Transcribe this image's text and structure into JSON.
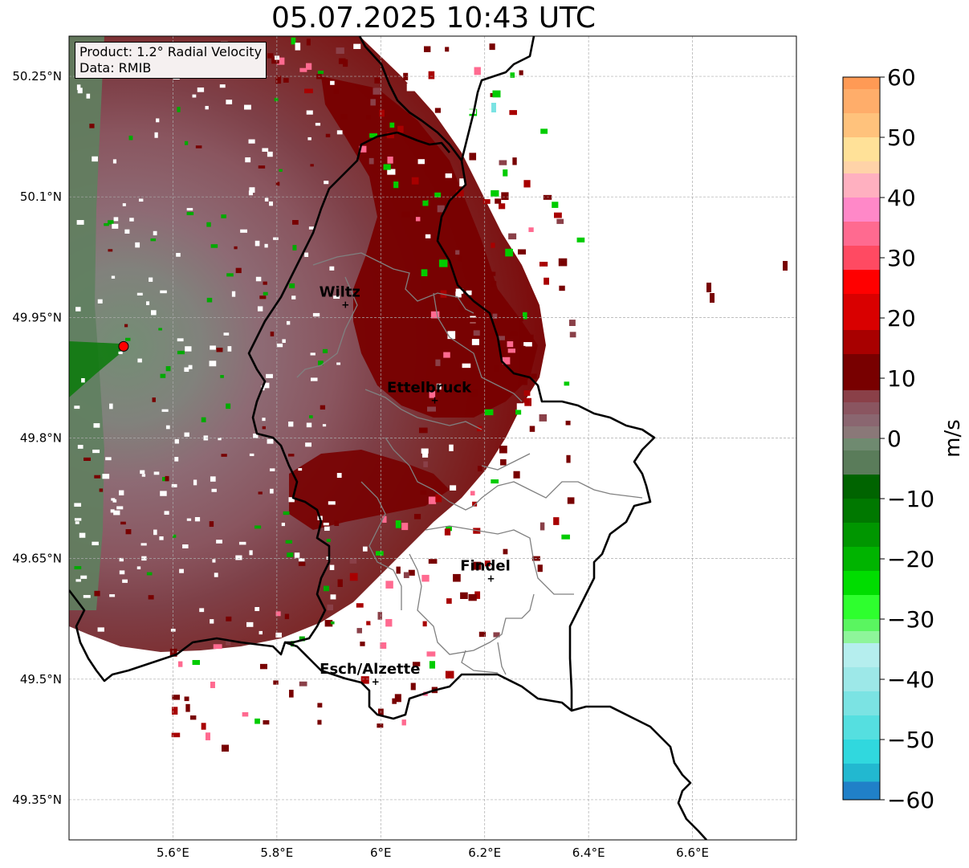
{
  "title": "05.07.2025 10:43 UTC",
  "info_box": {
    "product": "Product: 1.2° Radial Velocity",
    "data_source": "Data: RMIB"
  },
  "map": {
    "lon_range": [
      5.4,
      6.8
    ],
    "lat_range": [
      49.3,
      50.3
    ],
    "lat_ticks": [
      {
        "value": 50.25,
        "label": "50.25°N"
      },
      {
        "value": 50.1,
        "label": "50.1°N"
      },
      {
        "value": 49.95,
        "label": "49.95°N"
      },
      {
        "value": 49.8,
        "label": "49.8°N"
      },
      {
        "value": 49.65,
        "label": "49.65°N"
      },
      {
        "value": 49.5,
        "label": "49.5°N"
      },
      {
        "value": 49.35,
        "label": "49.35°N"
      }
    ],
    "lon_ticks": [
      {
        "value": 5.6,
        "label": "5.6°E"
      },
      {
        "value": 5.8,
        "label": "5.8°E"
      },
      {
        "value": 6.0,
        "label": "6°E"
      },
      {
        "value": 6.2,
        "label": "6.2°E"
      },
      {
        "value": 6.4,
        "label": "6.4°E"
      },
      {
        "value": 6.6,
        "label": "6.6°E"
      }
    ],
    "radar_site": {
      "lon": 5.505,
      "lat": 49.914
    },
    "cities": [
      {
        "name": "Wiltz",
        "lon": 5.932,
        "lat": 49.966
      },
      {
        "name": "Ettelbruck",
        "lon": 6.104,
        "lat": 49.847
      },
      {
        "name": "Findel",
        "lon": 6.212,
        "lat": 49.625
      },
      {
        "name": "Esch/Alzette",
        "lon": 5.99,
        "lat": 49.497
      }
    ]
  },
  "colorbar": {
    "label": "m/s",
    "min": -60,
    "max": 60,
    "ticks": [
      {
        "value": 60,
        "label": "60"
      },
      {
        "value": 50,
        "label": "50"
      },
      {
        "value": 40,
        "label": "40"
      },
      {
        "value": 30,
        "label": "30"
      },
      {
        "value": 20,
        "label": "20"
      },
      {
        "value": 10,
        "label": "10"
      },
      {
        "value": 0,
        "label": "0"
      },
      {
        "value": -10,
        "label": "−10"
      },
      {
        "value": -20,
        "label": "−20"
      },
      {
        "value": -30,
        "label": "−30"
      },
      {
        "value": -40,
        "label": "−40"
      },
      {
        "value": -50,
        "label": "−50"
      },
      {
        "value": -60,
        "label": "−60"
      }
    ],
    "stops": [
      {
        "from": 58,
        "to": 60,
        "color": "#ff9a55"
      },
      {
        "from": 54,
        "to": 58,
        "color": "#ffad6a"
      },
      {
        "from": 50,
        "to": 54,
        "color": "#ffc27c"
      },
      {
        "from": 46,
        "to": 50,
        "color": "#ffe198"
      },
      {
        "from": 44,
        "to": 46,
        "color": "#ffd3a8"
      },
      {
        "from": 40,
        "to": 44,
        "color": "#ffb0c0"
      },
      {
        "from": 36,
        "to": 40,
        "color": "#ff88c8"
      },
      {
        "from": 32,
        "to": 36,
        "color": "#ff6a90"
      },
      {
        "from": 28,
        "to": 32,
        "color": "#ff4a62"
      },
      {
        "from": 24,
        "to": 28,
        "color": "#ff0000"
      },
      {
        "from": 18,
        "to": 24,
        "color": "#d90000"
      },
      {
        "from": 14,
        "to": 18,
        "color": "#a80000"
      },
      {
        "from": 8,
        "to": 14,
        "color": "#780000"
      },
      {
        "from": 6,
        "to": 8,
        "color": "#8a4048"
      },
      {
        "from": 4,
        "to": 6,
        "color": "#8a5560"
      },
      {
        "from": 2,
        "to": 4,
        "color": "#8a6670"
      },
      {
        "from": 0,
        "to": 2,
        "color": "#8a7878"
      },
      {
        "from": -2,
        "to": 0,
        "color": "#6f8a70"
      },
      {
        "from": -6,
        "to": -2,
        "color": "#5a7c5a"
      },
      {
        "from": -10,
        "to": -6,
        "color": "#006400"
      },
      {
        "from": -14,
        "to": -10,
        "color": "#007800"
      },
      {
        "from": -18,
        "to": -14,
        "color": "#009600"
      },
      {
        "from": -22,
        "to": -18,
        "color": "#00b400"
      },
      {
        "from": -26,
        "to": -22,
        "color": "#00dd00"
      },
      {
        "from": -30,
        "to": -26,
        "color": "#2eff2e"
      },
      {
        "from": -32,
        "to": -30,
        "color": "#5af560"
      },
      {
        "from": -34,
        "to": -32,
        "color": "#8ef59a"
      },
      {
        "from": -38,
        "to": -34,
        "color": "#b5eeee"
      },
      {
        "from": -42,
        "to": -38,
        "color": "#9de8e8"
      },
      {
        "from": -46,
        "to": -42,
        "color": "#7be3e3"
      },
      {
        "from": -50,
        "to": -46,
        "color": "#55dfe0"
      },
      {
        "from": -54,
        "to": -50,
        "color": "#30d8de"
      },
      {
        "from": -57,
        "to": -54,
        "color": "#22b8d0"
      },
      {
        "from": -60,
        "to": -57,
        "color": "#2080c8"
      }
    ]
  },
  "colors": {
    "inbound_far": "#5f7f5f",
    "near_zero": "#8a6670",
    "outbound_mid": "#7a3a42",
    "outbound_strong": "#780000",
    "border": "#000000",
    "canton_border": "#808080",
    "radar_site": "#ff0000"
  }
}
